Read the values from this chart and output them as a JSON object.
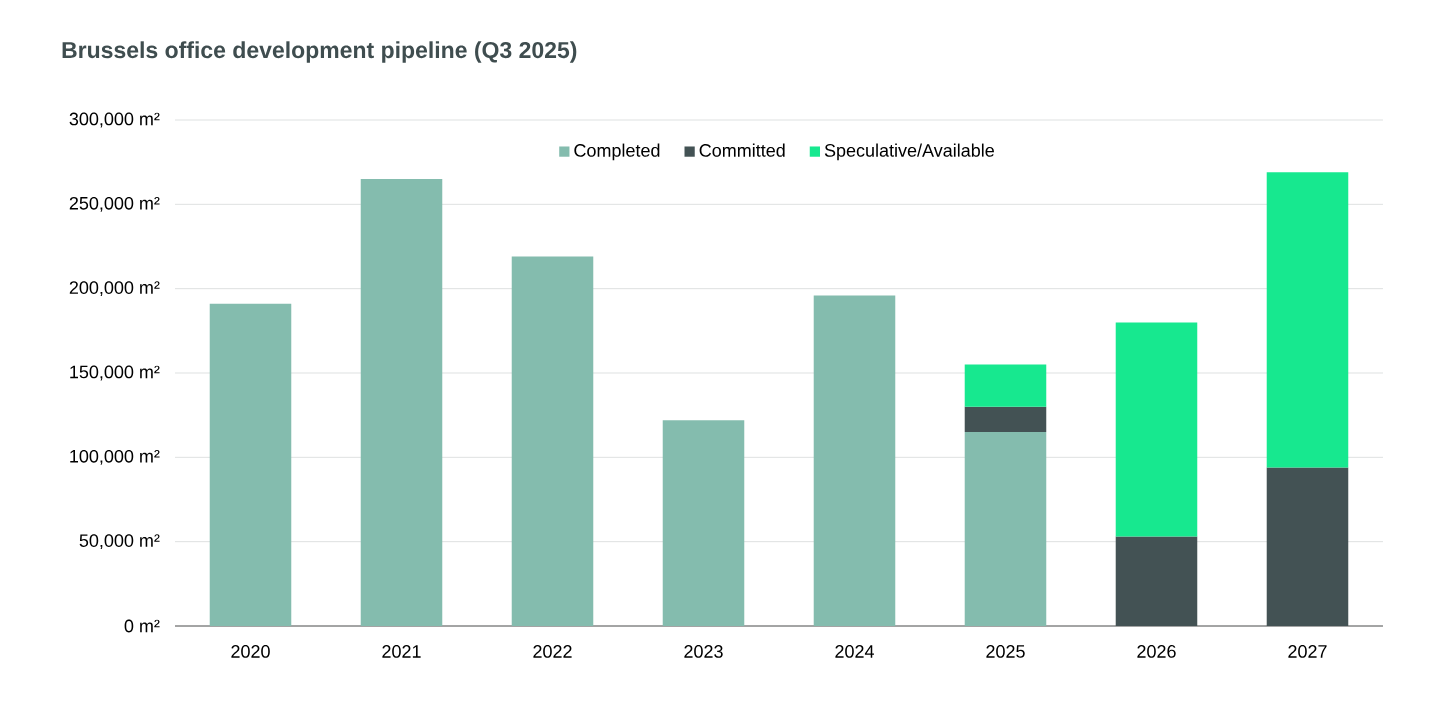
{
  "chart_data": {
    "type": "bar",
    "title": "Brussels office development pipeline (Q3 2025)",
    "categories": [
      "2020",
      "2021",
      "2022",
      "2023",
      "2024",
      "2025",
      "2026",
      "2027"
    ],
    "stacked": true,
    "series": [
      {
        "name": "Completed",
        "color": "#84bcae",
        "values": [
          191000,
          265000,
          219000,
          122000,
          196000,
          115000,
          null,
          null
        ]
      },
      {
        "name": "Committed",
        "color": "#435254",
        "values": [
          null,
          null,
          null,
          null,
          null,
          15000,
          53000,
          94000
        ]
      },
      {
        "name": "Speculative/Available",
        "color": "#17e88f",
        "values": [
          null,
          null,
          null,
          null,
          null,
          25000,
          127000,
          175000
        ]
      }
    ],
    "ylim": [
      0,
      300000
    ],
    "yticks": [
      {
        "value": 0,
        "label": "0 m²"
      },
      {
        "value": 50000,
        "label": "50,000 m²"
      },
      {
        "value": 100000,
        "label": "100,000 m²"
      },
      {
        "value": 150000,
        "label": "150,000 m²"
      },
      {
        "value": 200000,
        "label": "200,000 m²"
      },
      {
        "value": 250000,
        "label": "250,000 m²"
      },
      {
        "value": 300000,
        "label": "300,000 m²"
      }
    ],
    "grid": "y",
    "legend": "top"
  }
}
